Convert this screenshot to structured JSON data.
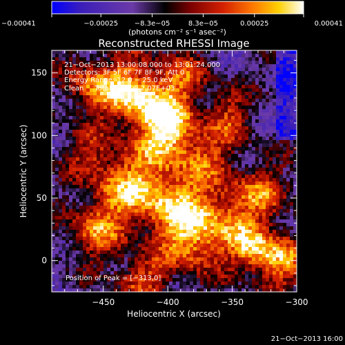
{
  "chart_data": {
    "type": "heatmap",
    "title": "Reconstructed RHESSI Image",
    "xlabel": "Heliocentric X (arcsec)",
    "ylabel": "Heliocentric Y (arcsec)",
    "xlim": [
      -490,
      -300
    ],
    "ylim": [
      -25,
      168
    ],
    "x_ticks": [
      -450,
      -400,
      -350,
      -300
    ],
    "x_tick_labels": [
      "−450",
      "−400",
      "−350",
      "−300"
    ],
    "y_ticks": [
      0,
      50,
      100,
      150
    ],
    "y_tick_labels": [
      "0",
      "50",
      "100",
      "150"
    ],
    "colorbar": {
      "range": [
        -0.00041,
        0.00041
      ],
      "ticks": [
        -0.00041,
        -0.00025,
        -8.3e-05,
        8.3e-05,
        0.00025,
        0.00041
      ],
      "tick_labels": [
        "−0.00041",
        "−0.00025",
        "−8.3e−05",
        "8.3e−05",
        "0.00025",
        "0.00041"
      ],
      "unit_label": "(photons cm⁻² s⁻¹ asec⁻²)",
      "colors": [
        "#0000ff",
        "#3c1fb8",
        "#6b3aa8",
        "#000000",
        "#7a0000",
        "#d42000",
        "#ff7a00",
        "#ffd000",
        "#ffffff"
      ]
    },
    "annotations": [
      "21−Oct−2013 13:00:08.000 to 13:01:24.000",
      "Detectors: 3F 5F 6F 7F 8F 9F, Att 0",
      "Energy Range: 12.0 − 25.0 keV",
      "Clean     Total counts: 2.07E+03"
    ],
    "peak_label": "Position of Peak = [−313,0]",
    "timestamp": "21−Oct−2013 16:00"
  }
}
